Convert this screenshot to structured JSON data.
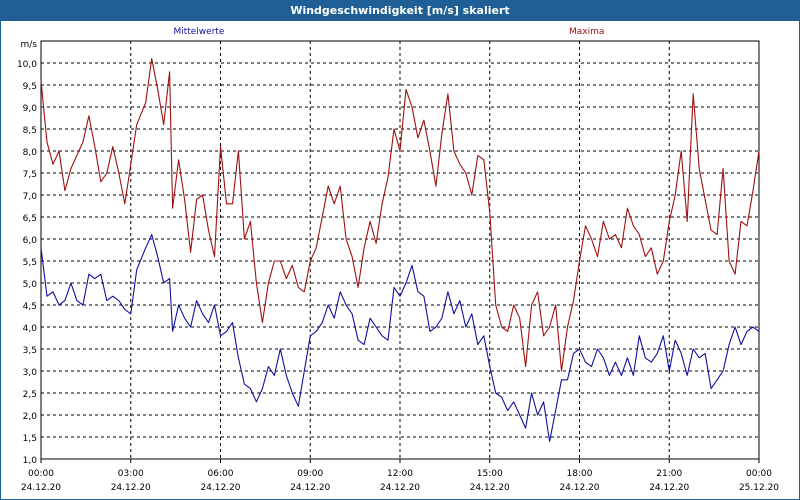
{
  "window": {
    "title": "Windgeschwindigkeit [m/s] skaliert"
  },
  "colors": {
    "titlebar": "#1f5f96",
    "mean": "#1010a0",
    "max": "#a01010",
    "grid": "#000000"
  },
  "chart_data": {
    "type": "line",
    "title": "Windgeschwindigkeit [m/s] skaliert",
    "ylabel": "m/s",
    "xlabel": "",
    "ylim": [
      1.0,
      10.5
    ],
    "xlim": [
      0,
      24
    ],
    "grid": true,
    "legend_position": "top",
    "y_ticks": [
      "1,0",
      "1,5",
      "2,0",
      "2,5",
      "3,0",
      "3,5",
      "4,0",
      "4,5",
      "5,0",
      "5,5",
      "6,0",
      "6,5",
      "7,0",
      "7,5",
      "8,0",
      "8,5",
      "9,0",
      "9,5",
      "10,0"
    ],
    "x_ticks": [
      {
        "hour": 0,
        "time": "00:00",
        "date": "24.12.20"
      },
      {
        "hour": 3,
        "time": "03:00",
        "date": "24.12.20"
      },
      {
        "hour": 6,
        "time": "06:00",
        "date": "24.12.20"
      },
      {
        "hour": 9,
        "time": "09:00",
        "date": "24.12.20"
      },
      {
        "hour": 12,
        "time": "12:00",
        "date": "24.12.20"
      },
      {
        "hour": 15,
        "time": "15:00",
        "date": "24.12.20"
      },
      {
        "hour": 18,
        "time": "18:00",
        "date": "24.12.20"
      },
      {
        "hour": 21,
        "time": "21:00",
        "date": "24.12.20"
      },
      {
        "hour": 24,
        "time": "00:00",
        "date": "25.12.20"
      }
    ],
    "series": [
      {
        "name": "Mittelwerte",
        "color": "#1010a0",
        "values": [
          [
            0.0,
            5.8
          ],
          [
            0.2,
            4.7
          ],
          [
            0.4,
            4.8
          ],
          [
            0.6,
            4.5
          ],
          [
            0.8,
            4.6
          ],
          [
            1.0,
            5.0
          ],
          [
            1.2,
            4.6
          ],
          [
            1.4,
            4.5
          ],
          [
            1.6,
            5.2
          ],
          [
            1.8,
            5.1
          ],
          [
            2.0,
            5.2
          ],
          [
            2.2,
            4.6
          ],
          [
            2.4,
            4.7
          ],
          [
            2.6,
            4.6
          ],
          [
            2.8,
            4.4
          ],
          [
            3.0,
            4.3
          ],
          [
            3.2,
            5.3
          ],
          [
            3.5,
            5.8
          ],
          [
            3.7,
            6.1
          ],
          [
            3.9,
            5.6
          ],
          [
            4.1,
            5.0
          ],
          [
            4.3,
            5.1
          ],
          [
            4.4,
            3.9
          ],
          [
            4.6,
            4.5
          ],
          [
            4.8,
            4.2
          ],
          [
            5.0,
            4.0
          ],
          [
            5.2,
            4.6
          ],
          [
            5.4,
            4.3
          ],
          [
            5.6,
            4.1
          ],
          [
            5.8,
            4.5
          ],
          [
            6.0,
            3.8
          ],
          [
            6.2,
            3.9
          ],
          [
            6.4,
            4.1
          ],
          [
            6.6,
            3.3
          ],
          [
            6.8,
            2.7
          ],
          [
            7.0,
            2.6
          ],
          [
            7.2,
            2.3
          ],
          [
            7.4,
            2.6
          ],
          [
            7.6,
            3.1
          ],
          [
            7.8,
            2.9
          ],
          [
            8.0,
            3.5
          ],
          [
            8.2,
            2.9
          ],
          [
            8.4,
            2.5
          ],
          [
            8.6,
            2.2
          ],
          [
            8.8,
            3.0
          ],
          [
            9.0,
            3.8
          ],
          [
            9.2,
            3.9
          ],
          [
            9.4,
            4.1
          ],
          [
            9.6,
            4.5
          ],
          [
            9.8,
            4.2
          ],
          [
            10.0,
            4.8
          ],
          [
            10.2,
            4.5
          ],
          [
            10.4,
            4.3
          ],
          [
            10.6,
            3.7
          ],
          [
            10.8,
            3.6
          ],
          [
            11.0,
            4.2
          ],
          [
            11.2,
            4.0
          ],
          [
            11.4,
            3.8
          ],
          [
            11.6,
            3.7
          ],
          [
            11.8,
            4.9
          ],
          [
            12.0,
            4.7
          ],
          [
            12.2,
            5.0
          ],
          [
            12.4,
            5.4
          ],
          [
            12.6,
            4.8
          ],
          [
            12.8,
            4.7
          ],
          [
            13.0,
            3.9
          ],
          [
            13.2,
            4.0
          ],
          [
            13.4,
            4.2
          ],
          [
            13.6,
            4.8
          ],
          [
            13.8,
            4.3
          ],
          [
            14.0,
            4.6
          ],
          [
            14.2,
            4.0
          ],
          [
            14.4,
            4.3
          ],
          [
            14.6,
            3.6
          ],
          [
            14.8,
            3.8
          ],
          [
            15.0,
            3.1
          ],
          [
            15.2,
            2.5
          ],
          [
            15.4,
            2.4
          ],
          [
            15.6,
            2.1
          ],
          [
            15.8,
            2.3
          ],
          [
            16.0,
            2.0
          ],
          [
            16.2,
            1.7
          ],
          [
            16.4,
            2.5
          ],
          [
            16.6,
            2.0
          ],
          [
            16.8,
            2.3
          ],
          [
            17.0,
            1.4
          ],
          [
            17.2,
            2.1
          ],
          [
            17.4,
            2.8
          ],
          [
            17.6,
            2.8
          ],
          [
            17.8,
            3.4
          ],
          [
            18.0,
            3.5
          ],
          [
            18.2,
            3.2
          ],
          [
            18.4,
            3.1
          ],
          [
            18.6,
            3.5
          ],
          [
            18.8,
            3.3
          ],
          [
            19.0,
            2.9
          ],
          [
            19.2,
            3.2
          ],
          [
            19.4,
            2.9
          ],
          [
            19.6,
            3.3
          ],
          [
            19.8,
            2.9
          ],
          [
            20.0,
            3.8
          ],
          [
            20.2,
            3.3
          ],
          [
            20.4,
            3.2
          ],
          [
            20.6,
            3.4
          ],
          [
            20.8,
            3.8
          ],
          [
            21.0,
            3.0
          ],
          [
            21.2,
            3.7
          ],
          [
            21.4,
            3.4
          ],
          [
            21.6,
            2.9
          ],
          [
            21.8,
            3.5
          ],
          [
            22.0,
            3.3
          ],
          [
            22.2,
            3.4
          ],
          [
            22.4,
            2.6
          ],
          [
            22.6,
            2.8
          ],
          [
            22.8,
            3.0
          ],
          [
            23.0,
            3.6
          ],
          [
            23.2,
            4.0
          ],
          [
            23.4,
            3.6
          ],
          [
            23.6,
            3.9
          ],
          [
            23.8,
            4.0
          ],
          [
            24.0,
            3.9
          ]
        ]
      },
      {
        "name": "Maxima",
        "color": "#a01010",
        "values": [
          [
            0.0,
            9.6
          ],
          [
            0.2,
            8.2
          ],
          [
            0.4,
            7.7
          ],
          [
            0.6,
            8.0
          ],
          [
            0.8,
            7.1
          ],
          [
            1.0,
            7.6
          ],
          [
            1.2,
            7.9
          ],
          [
            1.4,
            8.2
          ],
          [
            1.6,
            8.8
          ],
          [
            1.8,
            8.1
          ],
          [
            2.0,
            7.3
          ],
          [
            2.2,
            7.5
          ],
          [
            2.4,
            8.1
          ],
          [
            2.6,
            7.5
          ],
          [
            2.8,
            6.8
          ],
          [
            3.0,
            7.7
          ],
          [
            3.2,
            8.6
          ],
          [
            3.5,
            9.1
          ],
          [
            3.7,
            10.1
          ],
          [
            3.9,
            9.4
          ],
          [
            4.1,
            8.6
          ],
          [
            4.3,
            9.8
          ],
          [
            4.4,
            6.7
          ],
          [
            4.6,
            7.8
          ],
          [
            4.8,
            6.9
          ],
          [
            5.0,
            5.7
          ],
          [
            5.2,
            6.9
          ],
          [
            5.4,
            7.0
          ],
          [
            5.6,
            6.2
          ],
          [
            5.8,
            5.6
          ],
          [
            6.0,
            8.1
          ],
          [
            6.2,
            6.8
          ],
          [
            6.4,
            6.8
          ],
          [
            6.6,
            8.0
          ],
          [
            6.8,
            6.0
          ],
          [
            7.0,
            6.4
          ],
          [
            7.2,
            5.0
          ],
          [
            7.4,
            4.1
          ],
          [
            7.6,
            5.0
          ],
          [
            7.8,
            5.5
          ],
          [
            8.0,
            5.5
          ],
          [
            8.2,
            5.1
          ],
          [
            8.4,
            5.4
          ],
          [
            8.6,
            4.9
          ],
          [
            8.8,
            4.8
          ],
          [
            9.0,
            5.5
          ],
          [
            9.2,
            5.8
          ],
          [
            9.4,
            6.5
          ],
          [
            9.6,
            7.2
          ],
          [
            9.8,
            6.8
          ],
          [
            10.0,
            7.2
          ],
          [
            10.2,
            6.0
          ],
          [
            10.4,
            5.6
          ],
          [
            10.6,
            4.9
          ],
          [
            10.8,
            5.8
          ],
          [
            11.0,
            6.4
          ],
          [
            11.2,
            5.9
          ],
          [
            11.4,
            6.8
          ],
          [
            11.6,
            7.4
          ],
          [
            11.8,
            8.5
          ],
          [
            12.0,
            8.0
          ],
          [
            12.2,
            9.4
          ],
          [
            12.4,
            9.0
          ],
          [
            12.6,
            8.3
          ],
          [
            12.8,
            8.7
          ],
          [
            13.0,
            8.0
          ],
          [
            13.2,
            7.2
          ],
          [
            13.4,
            8.4
          ],
          [
            13.6,
            9.3
          ],
          [
            13.8,
            8.0
          ],
          [
            14.0,
            7.7
          ],
          [
            14.2,
            7.5
          ],
          [
            14.4,
            7.0
          ],
          [
            14.6,
            7.9
          ],
          [
            14.8,
            7.8
          ],
          [
            15.0,
            6.6
          ],
          [
            15.2,
            4.5
          ],
          [
            15.4,
            4.0
          ],
          [
            15.6,
            3.9
          ],
          [
            15.8,
            4.5
          ],
          [
            16.0,
            4.2
          ],
          [
            16.2,
            3.1
          ],
          [
            16.4,
            4.5
          ],
          [
            16.6,
            4.8
          ],
          [
            16.8,
            3.8
          ],
          [
            17.0,
            4.0
          ],
          [
            17.2,
            4.5
          ],
          [
            17.4,
            3.0
          ],
          [
            17.6,
            4.0
          ],
          [
            17.8,
            4.6
          ],
          [
            18.0,
            5.5
          ],
          [
            18.2,
            6.3
          ],
          [
            18.4,
            6.0
          ],
          [
            18.6,
            5.6
          ],
          [
            18.8,
            6.4
          ],
          [
            19.0,
            6.0
          ],
          [
            19.2,
            6.1
          ],
          [
            19.4,
            5.8
          ],
          [
            19.6,
            6.7
          ],
          [
            19.8,
            6.3
          ],
          [
            20.0,
            6.1
          ],
          [
            20.2,
            5.6
          ],
          [
            20.4,
            5.8
          ],
          [
            20.6,
            5.2
          ],
          [
            20.8,
            5.5
          ],
          [
            21.0,
            6.4
          ],
          [
            21.2,
            7.0
          ],
          [
            21.4,
            8.0
          ],
          [
            21.6,
            6.4
          ],
          [
            21.8,
            9.3
          ],
          [
            22.0,
            7.6
          ],
          [
            22.2,
            6.9
          ],
          [
            22.4,
            6.2
          ],
          [
            22.6,
            6.1
          ],
          [
            22.8,
            7.6
          ],
          [
            23.0,
            5.5
          ],
          [
            23.2,
            5.2
          ],
          [
            23.4,
            6.4
          ],
          [
            23.6,
            6.3
          ],
          [
            23.8,
            7.1
          ],
          [
            24.0,
            8.0
          ]
        ]
      }
    ]
  }
}
